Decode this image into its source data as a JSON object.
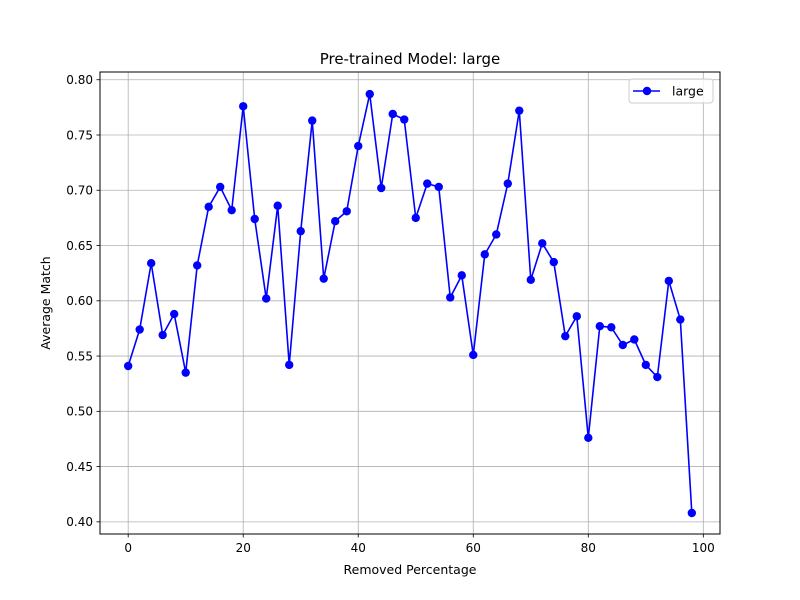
{
  "chart_data": {
    "type": "line",
    "title": "Pre-trained Model: large",
    "xlabel": "Removed Percentage",
    "ylabel": "Average Match",
    "xlim": [
      -4.9,
      102.9
    ],
    "ylim": [
      0.389,
      0.807
    ],
    "xticks": [
      0,
      20,
      40,
      60,
      80,
      100
    ],
    "xtick_labels": [
      "0",
      "20",
      "40",
      "60",
      "80",
      "100"
    ],
    "yticks": [
      0.4,
      0.45,
      0.5,
      0.55,
      0.6,
      0.65,
      0.7,
      0.75,
      0.8
    ],
    "ytick_labels": [
      "0.40",
      "0.45",
      "0.50",
      "0.55",
      "0.60",
      "0.65",
      "0.70",
      "0.75",
      "0.80"
    ],
    "grid": true,
    "legend": {
      "placement": "top-right",
      "entries": [
        "large"
      ]
    },
    "series": [
      {
        "name": "large",
        "color": "#0000ff",
        "marker": "circle",
        "x": [
          0,
          2,
          4,
          6,
          8,
          10,
          12,
          14,
          16,
          18,
          20,
          22,
          24,
          26,
          28,
          30,
          32,
          34,
          36,
          38,
          40,
          42,
          44,
          46,
          48,
          50,
          52,
          54,
          56,
          58,
          60,
          62,
          64,
          66,
          68,
          70,
          72,
          74,
          76,
          78,
          80,
          82,
          84,
          86,
          88,
          90,
          92,
          94,
          96,
          98
        ],
        "y": [
          0.541,
          0.574,
          0.634,
          0.569,
          0.588,
          0.535,
          0.632,
          0.685,
          0.703,
          0.682,
          0.776,
          0.674,
          0.602,
          0.686,
          0.542,
          0.663,
          0.763,
          0.62,
          0.672,
          0.681,
          0.74,
          0.787,
          0.702,
          0.769,
          0.764,
          0.675,
          0.706,
          0.703,
          0.603,
          0.623,
          0.551,
          0.642,
          0.66,
          0.706,
          0.772,
          0.619,
          0.652,
          0.635,
          0.568,
          0.586,
          0.476,
          0.577,
          0.576,
          0.56,
          0.565,
          0.542,
          0.531,
          0.618,
          0.583,
          0.408
        ]
      }
    ]
  }
}
